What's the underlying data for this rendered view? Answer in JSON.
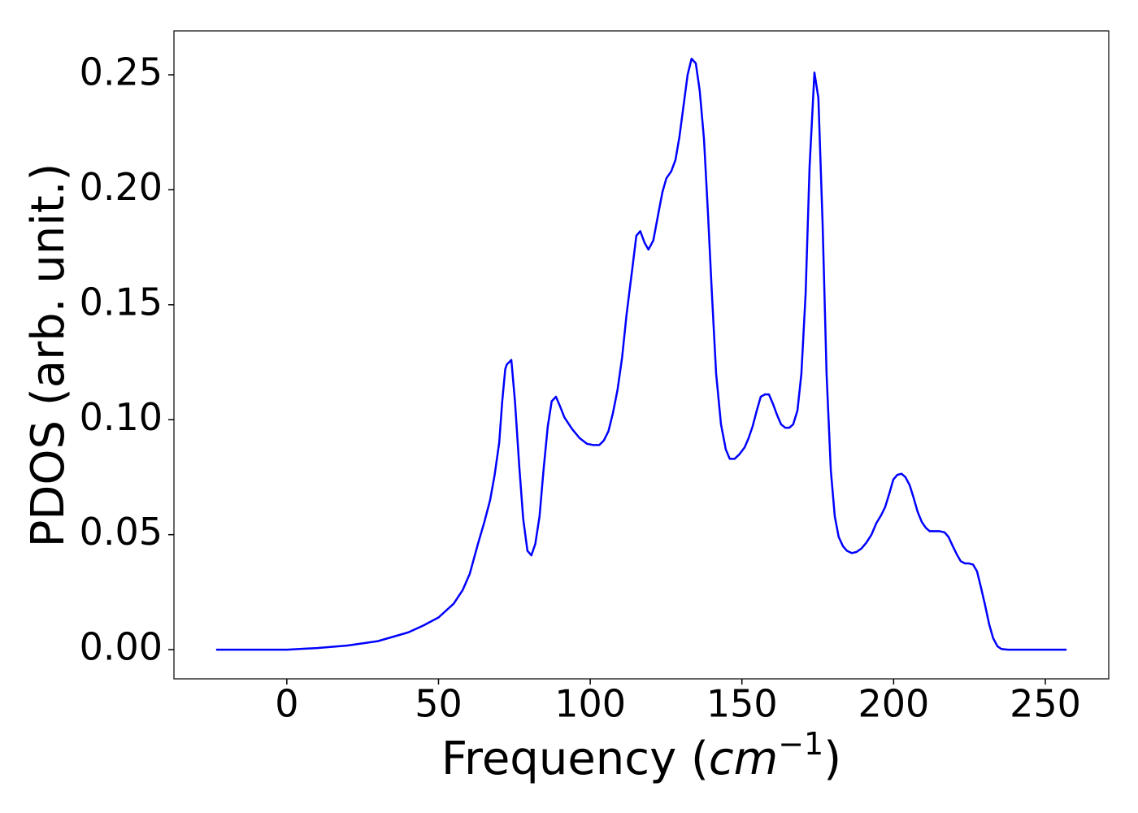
{
  "chart_data": {
    "type": "line",
    "xlabel": [
      "Frequency (",
      "cm",
      "−1",
      ")"
    ],
    "ylabel": "PDOS (arb. unit.)",
    "xlim": [
      -37.2,
      270.9
    ],
    "ylim": [
      -0.0127,
      0.2691
    ],
    "xticks": [
      0,
      50,
      100,
      150,
      200,
      250
    ],
    "yticks": [
      {
        "value": 0,
        "label": "0.00"
      },
      0.05,
      {
        "value": 0.1,
        "label": "0.10"
      },
      0.15,
      {
        "value": 0.2,
        "label": "0.20"
      },
      0.25
    ],
    "series": [
      {
        "color": "#0000ff",
        "x": [
          -23.3,
          0,
          10,
          20,
          30,
          40,
          45,
          50,
          55,
          58,
          60.3,
          63,
          65,
          67,
          68.5,
          70,
          71,
          72,
          72.5,
          74,
          75.2,
          76.6,
          77.9,
          79.3,
          80.6,
          81.9,
          83.3,
          84.6,
          86,
          87.3,
          88.7,
          90,
          91.5,
          94,
          96.5,
          99,
          101,
          103,
          104.5,
          106,
          107.5,
          109,
          110.5,
          112,
          113.9,
          115.2,
          116.5,
          117.9,
          119.2,
          120.8,
          122.5,
          123.8,
          125.1,
          126.7,
          128.1,
          129.4,
          130.8,
          132.1,
          133.4,
          134.8,
          136.1,
          137.5,
          138.8,
          140.1,
          141.5,
          143.1,
          144.7,
          146,
          147.6,
          149.2,
          150.9,
          152.2,
          153.5,
          154.9,
          156.2,
          157.6,
          158.9,
          160.2,
          161.6,
          162.9,
          164.3,
          165.6,
          166.9,
          168.3,
          169.6,
          171,
          172.3,
          173.9,
          175.2,
          176.6,
          177.9,
          179.3,
          180.6,
          181.9,
          183.3,
          184.6,
          186.2,
          187.8,
          189.4,
          191,
          192.7,
          194.3,
          195.9,
          197.2,
          198.6,
          199.9,
          201.2,
          202.6,
          203.9,
          205.3,
          206.6,
          207.9,
          209.3,
          210.6,
          211.9,
          213.6,
          215.2,
          216.8,
          218.1,
          219.5,
          220.8,
          222.1,
          223.5,
          224.8,
          226.2,
          227.5,
          228.8,
          230.2,
          231.5,
          232.8,
          234.2,
          235.5,
          237.7,
          257
        ],
        "values": [
          0,
          0,
          0.0007,
          0.0018,
          0.0037,
          0.0075,
          0.0105,
          0.014,
          0.02,
          0.026,
          0.033,
          0.046,
          0.055,
          0.065,
          0.076,
          0.09,
          0.108,
          0.122,
          0.124,
          0.126,
          0.108,
          0.08,
          0.057,
          0.043,
          0.041,
          0.046,
          0.058,
          0.078,
          0.097,
          0.108,
          0.11,
          0.106,
          0.101,
          0.096,
          0.092,
          0.0895,
          0.089,
          0.089,
          0.091,
          0.095,
          0.103,
          0.113,
          0.127,
          0.146,
          0.166,
          0.18,
          0.182,
          0.177,
          0.174,
          0.178,
          0.19,
          0.199,
          0.205,
          0.208,
          0.213,
          0.223,
          0.237,
          0.25,
          0.257,
          0.255,
          0.243,
          0.222,
          0.19,
          0.155,
          0.12,
          0.098,
          0.087,
          0.083,
          0.083,
          0.085,
          0.088,
          0.092,
          0.097,
          0.104,
          0.11,
          0.111,
          0.111,
          0.107,
          0.102,
          0.098,
          0.0965,
          0.0965,
          0.098,
          0.104,
          0.12,
          0.155,
          0.21,
          0.251,
          0.24,
          0.185,
          0.12,
          0.078,
          0.058,
          0.049,
          0.045,
          0.043,
          0.042,
          0.0425,
          0.044,
          0.0465,
          0.05,
          0.055,
          0.0585,
          0.062,
          0.068,
          0.074,
          0.076,
          0.0765,
          0.075,
          0.0715,
          0.066,
          0.06,
          0.0555,
          0.053,
          0.0515,
          0.0515,
          0.0515,
          0.051,
          0.049,
          0.045,
          0.0415,
          0.0385,
          0.0375,
          0.0375,
          0.037,
          0.034,
          0.027,
          0.019,
          0.011,
          0.005,
          0.0015,
          0.0003,
          0,
          0
        ]
      }
    ]
  }
}
